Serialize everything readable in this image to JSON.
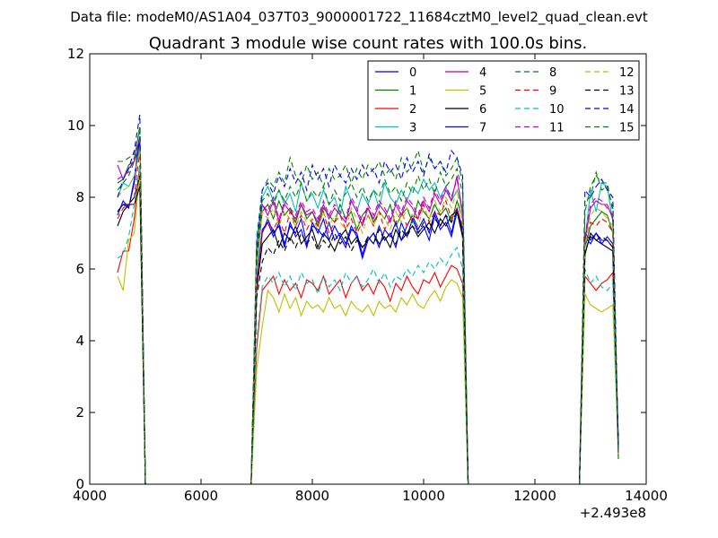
{
  "suptitle": "Data file: modeM0/AS1A04_037T03_9000001722_11684cztM0_level2_quad_clean.evt",
  "chart_data": {
    "type": "line",
    "title": "Quadrant 3 module wise count rates with 100.0s bins.",
    "xlabel": "",
    "ylabel": "",
    "x_offset_label": "+2.493e8",
    "xlim": [
      4000,
      14000
    ],
    "ylim": [
      0,
      12
    ],
    "xticks": [
      "4000",
      "6000",
      "8000",
      "10000",
      "12000",
      "14000"
    ],
    "yticks": [
      "0",
      "2",
      "4",
      "6",
      "8",
      "10",
      "12"
    ],
    "grid": false,
    "legend": {
      "placement": "top-right",
      "columns": 4
    },
    "x_segments": [
      {
        "start": 4500,
        "end": 4900,
        "step": 100
      },
      {
        "start": 5000,
        "end": 6900,
        "step": 100,
        "zero": true
      },
      {
        "start": 7000,
        "end": 10700,
        "step": 100
      },
      {
        "start": 10800,
        "end": 12800,
        "step": 100,
        "zero": true
      },
      {
        "start": 12900,
        "end": 13500,
        "step": 100
      }
    ],
    "series": [
      {
        "name": "0",
        "color": "#0000ff",
        "style": "solid",
        "seg1": [
          7.6,
          7.8,
          7.7,
          8.4,
          9.6
        ],
        "seg3": [
          5.5,
          7.0,
          7.4,
          7.0,
          7.2,
          6.6,
          7.3,
          6.9,
          7.1,
          6.6,
          7.3,
          7.0,
          7.4,
          6.8,
          7.2,
          6.9,
          6.6,
          7.1,
          7.0,
          6.4,
          6.9,
          6.7,
          7.2,
          6.8,
          7.0,
          6.6,
          7.3,
          6.9,
          7.4,
          7.0,
          7.2,
          6.8,
          7.5,
          7.1,
          7.3,
          6.9,
          7.6,
          7.0
        ],
        "seg5": [
          6.9,
          6.7,
          7.0,
          6.8,
          6.8,
          6.6,
          1.0
        ]
      },
      {
        "name": "1",
        "color": "#008000",
        "style": "solid",
        "seg1": [
          8.4,
          8.5,
          8.9,
          9.0,
          9.4
        ],
        "seg3": [
          6.0,
          7.6,
          7.8,
          7.4,
          7.9,
          7.5,
          7.7,
          7.3,
          7.8,
          7.4,
          7.6,
          7.2,
          7.7,
          7.5,
          7.3,
          7.8,
          7.4,
          7.6,
          7.1,
          7.5,
          7.7,
          7.3,
          7.6,
          7.4,
          7.8,
          7.2,
          7.5,
          7.7,
          7.3,
          7.9,
          7.6,
          7.4,
          7.8,
          7.5,
          7.7,
          7.3,
          7.9,
          7.4
        ],
        "seg5": [
          6.6,
          7.2,
          7.4,
          7.6,
          7.5,
          7.0,
          0.9
        ]
      },
      {
        "name": "2",
        "color": "#ff0000",
        "style": "solid",
        "seg1": [
          5.9,
          6.5,
          6.5,
          7.4,
          8.9
        ],
        "seg3": [
          3.8,
          5.4,
          5.6,
          5.8,
          5.3,
          5.7,
          5.4,
          5.6,
          5.2,
          5.7,
          5.6,
          5.4,
          5.8,
          5.3,
          5.5,
          5.7,
          5.2,
          5.6,
          5.8,
          5.4,
          5.6,
          5.3,
          5.7,
          5.5,
          5.1,
          5.6,
          5.4,
          5.8,
          5.5,
          5.3,
          5.7,
          5.6,
          5.9,
          5.5,
          5.8,
          6.1,
          6.0,
          5.6
        ],
        "seg5": [
          5.8,
          5.6,
          5.4,
          5.6,
          5.7,
          5.9,
          0.8
        ]
      },
      {
        "name": "3",
        "color": "#00bfbf",
        "style": "solid",
        "seg1": [
          8.0,
          8.4,
          8.3,
          8.6,
          9.4
        ],
        "seg3": [
          6.8,
          8.0,
          8.3,
          7.9,
          8.2,
          7.8,
          8.1,
          7.6,
          8.4,
          7.9,
          8.1,
          7.7,
          8.2,
          7.8,
          8.0,
          7.5,
          8.3,
          7.9,
          7.6,
          8.1,
          7.8,
          8.2,
          7.7,
          8.4,
          8.0,
          7.8,
          8.2,
          7.9,
          8.3,
          8.1,
          8.5,
          8.2,
          8.4,
          8.0,
          8.3,
          7.9,
          8.2,
          7.7
        ],
        "seg5": [
          6.8,
          8.2,
          7.6,
          8.4,
          8.3,
          7.3,
          0.7
        ]
      },
      {
        "name": "4",
        "color": "#bf00bf",
        "style": "solid",
        "seg1": [
          8.9,
          8.5,
          8.8,
          9.0,
          9.7
        ],
        "seg3": [
          6.5,
          7.8,
          7.5,
          7.9,
          7.3,
          7.8,
          7.6,
          7.4,
          7.8,
          7.5,
          7.6,
          7.3,
          7.8,
          7.4,
          7.7,
          7.5,
          7.3,
          7.9,
          7.6,
          7.2,
          7.7,
          7.4,
          7.8,
          7.6,
          7.3,
          7.8,
          7.5,
          7.9,
          7.7,
          7.4,
          7.9,
          7.6,
          8.1,
          7.8,
          8.2,
          7.9,
          8.6,
          7.5
        ],
        "seg5": [
          6.8,
          7.7,
          7.9,
          7.8,
          7.8,
          7.4,
          0.8
        ]
      },
      {
        "name": "5",
        "color": "#bfbf00",
        "style": "solid",
        "seg1": [
          5.8,
          5.4,
          6.8,
          7.0,
          8.7
        ],
        "seg3": [
          3.2,
          4.4,
          5.4,
          5.2,
          4.8,
          5.3,
          4.9,
          5.2,
          4.7,
          5.1,
          4.9,
          5.0,
          4.8,
          5.2,
          4.9,
          5.0,
          4.7,
          5.1,
          4.9,
          4.8,
          5.0,
          4.7,
          5.1,
          4.9,
          5.0,
          4.8,
          5.2,
          5.0,
          5.3,
          5.0,
          4.9,
          5.2,
          5.4,
          5.1,
          5.5,
          5.7,
          5.6,
          5.2
        ],
        "seg5": [
          5.3,
          5.0,
          4.9,
          4.8,
          4.9,
          5.0,
          0.9
        ]
      },
      {
        "name": "6",
        "color": "#000000",
        "style": "solid",
        "seg1": [
          7.2,
          7.6,
          7.8,
          7.8,
          8.3
        ],
        "seg3": [
          5.4,
          6.7,
          6.9,
          7.1,
          6.6,
          7.0,
          6.8,
          7.2,
          6.7,
          6.9,
          7.1,
          6.6,
          7.0,
          6.8,
          6.5,
          6.9,
          7.1,
          6.7,
          6.9,
          6.6,
          6.8,
          7.0,
          6.7,
          6.9,
          6.6,
          7.1,
          6.8,
          7.0,
          7.2,
          6.9,
          7.1,
          7.3,
          7.0,
          7.4,
          7.2,
          7.5,
          7.6,
          6.9
        ],
        "seg5": [
          6.4,
          7.0,
          6.8,
          6.7,
          6.6,
          6.5,
          1.1
        ]
      },
      {
        "name": "7",
        "color": "#0000ff",
        "style": "solid",
        "seg1": [
          7.5,
          7.9,
          7.7,
          8.5,
          9.7
        ],
        "seg3": [
          5.6,
          7.1,
          7.3,
          6.9,
          7.3,
          6.7,
          7.2,
          7.0,
          7.4,
          6.7,
          7.2,
          7.1,
          6.9,
          7.3,
          6.8,
          7.0,
          6.7,
          7.2,
          6.9,
          6.3,
          6.8,
          7.0,
          6.6,
          7.1,
          6.9,
          7.3,
          6.8,
          7.2,
          7.5,
          7.1,
          7.4,
          7.0,
          7.6,
          7.2,
          7.5,
          7.0,
          7.7,
          7.1
        ],
        "seg5": [
          7.0,
          6.8,
          7.0,
          6.7,
          6.9,
          6.7,
          1.2
        ]
      },
      {
        "name": "8",
        "color": "#008000",
        "style": "dashed",
        "seg1": [
          9.0,
          9.0,
          9.1,
          9.2,
          9.9
        ],
        "seg3": [
          6.9,
          8.2,
          8.5,
          8.3,
          8.7,
          8.4,
          9.1,
          8.6,
          8.4,
          8.9,
          8.5,
          8.7,
          8.3,
          8.8,
          8.5,
          8.6,
          8.9,
          8.4,
          8.8,
          8.5,
          8.9,
          8.7,
          9.0,
          8.6,
          8.8,
          8.5,
          9.1,
          8.7,
          8.9,
          9.3,
          8.7,
          9.1,
          8.8,
          9.0,
          8.6,
          8.8,
          9.1,
          8.4
        ],
        "seg5": [
          7.6,
          8.3,
          8.6,
          8.4,
          8.4,
          7.6,
          0.8
        ]
      },
      {
        "name": "9",
        "color": "#ff0000",
        "style": "dashed",
        "seg1": [
          7.4,
          7.7,
          7.8,
          8.0,
          9.3
        ],
        "seg3": [
          5.4,
          7.0,
          7.3,
          7.1,
          7.4,
          7.0,
          7.6,
          7.2,
          7.5,
          7.1,
          7.4,
          7.2,
          7.6,
          7.0,
          7.3,
          7.5,
          7.1,
          7.4,
          7.0,
          7.3,
          7.5,
          7.2,
          7.6,
          7.1,
          7.4,
          7.3,
          7.6,
          7.2,
          7.5,
          7.4,
          7.8,
          7.3,
          7.6,
          7.5,
          7.9,
          7.4,
          7.7,
          7.2
        ],
        "seg5": [
          6.8,
          7.3,
          7.2,
          7.4,
          7.3,
          7.0,
          0.9
        ]
      },
      {
        "name": "10",
        "color": "#00bfbf",
        "style": "dashed",
        "seg1": [
          6.3,
          6.4,
          6.9,
          7.8,
          8.9
        ],
        "seg3": [
          4.0,
          5.5,
          5.8,
          5.6,
          5.9,
          5.5,
          5.8,
          5.4,
          5.9,
          5.6,
          5.7,
          5.3,
          5.8,
          5.5,
          5.7,
          5.4,
          5.9,
          5.6,
          5.8,
          5.5,
          5.7,
          6.0,
          5.6,
          5.9,
          5.5,
          5.8,
          5.7,
          6.0,
          5.8,
          6.1,
          5.9,
          6.2,
          6.0,
          6.3,
          6.1,
          6.4,
          6.6,
          6.0
        ],
        "seg5": [
          6.0,
          5.6,
          5.8,
          5.5,
          5.4,
          5.6,
          0.8
        ]
      },
      {
        "name": "11",
        "color": "#bf00bf",
        "style": "dashed",
        "seg1": [
          8.5,
          8.6,
          8.7,
          9.1,
          9.6
        ],
        "seg3": [
          6.4,
          7.8,
          7.6,
          8.0,
          7.4,
          7.9,
          7.7,
          7.5,
          7.9,
          7.6,
          7.7,
          7.4,
          7.9,
          7.5,
          7.8,
          7.6,
          7.4,
          8.0,
          7.7,
          7.3,
          7.8,
          7.5,
          7.9,
          7.7,
          7.4,
          7.9,
          7.6,
          8.0,
          7.8,
          7.5,
          8.0,
          7.7,
          8.2,
          7.9,
          8.3,
          8.0,
          8.5,
          7.6
        ],
        "seg5": [
          6.9,
          7.8,
          8.0,
          7.9,
          7.7,
          7.5,
          0.8
        ]
      },
      {
        "name": "12",
        "color": "#bfbf00",
        "style": "dashed",
        "seg1": [
          8.0,
          8.2,
          8.3,
          8.6,
          9.3
        ],
        "seg3": [
          6.2,
          7.6,
          7.4,
          7.7,
          7.2,
          7.6,
          7.4,
          7.2,
          7.6,
          7.3,
          7.4,
          7.1,
          7.6,
          7.2,
          7.5,
          7.3,
          7.1,
          7.7,
          7.4,
          7.0,
          7.5,
          7.2,
          7.6,
          7.4,
          7.1,
          7.6,
          7.3,
          7.7,
          7.5,
          7.2,
          7.7,
          7.4,
          7.9,
          7.6,
          8.0,
          7.7,
          8.2,
          7.3
        ],
        "seg5": [
          6.6,
          7.5,
          7.7,
          7.6,
          7.4,
          7.2,
          0.8
        ]
      },
      {
        "name": "13",
        "color": "#000000",
        "style": "dashed",
        "seg1": [
          7.6,
          7.8,
          7.8,
          8.0,
          8.6
        ],
        "seg3": [
          5.2,
          6.2,
          6.6,
          6.4,
          6.8,
          6.5,
          6.9,
          6.6,
          7.0,
          6.7,
          6.9,
          6.5,
          6.8,
          6.6,
          7.0,
          6.7,
          6.9,
          6.5,
          6.8,
          6.6,
          6.9,
          6.7,
          7.1,
          6.8,
          7.0,
          6.7,
          7.1,
          6.9,
          7.2,
          7.0,
          7.3,
          7.1,
          7.4,
          7.2,
          7.5,
          7.3,
          7.6,
          7.0
        ],
        "seg5": [
          6.5,
          6.9,
          6.8,
          6.9,
          6.8,
          6.6,
          1.1
        ]
      },
      {
        "name": "14",
        "color": "#0000ff",
        "style": "dashed",
        "seg1": [
          8.0,
          8.5,
          8.8,
          9.3,
          10.3
        ],
        "seg3": [
          6.5,
          8.2,
          8.4,
          8.1,
          8.6,
          8.3,
          8.8,
          8.4,
          8.7,
          8.2,
          8.9,
          8.5,
          8.8,
          8.3,
          8.9,
          8.6,
          8.4,
          8.8,
          8.5,
          8.9,
          8.6,
          8.8,
          8.4,
          9.0,
          8.7,
          8.9,
          8.5,
          9.1,
          8.7,
          9.0,
          8.6,
          9.2,
          8.8,
          9.0,
          8.7,
          9.3,
          9.1,
          8.6
        ],
        "seg5": [
          8.2,
          8.0,
          8.3,
          8.5,
          8.2,
          8.0,
          0.9
        ]
      },
      {
        "name": "15",
        "color": "#008000",
        "style": "dashed",
        "seg1": [
          8.2,
          8.4,
          8.6,
          9.0,
          10.0
        ],
        "seg3": [
          6.3,
          7.9,
          8.1,
          7.8,
          8.2,
          7.9,
          8.3,
          8.0,
          8.4,
          7.9,
          8.2,
          8.0,
          8.3,
          7.8,
          8.2,
          7.9,
          8.1,
          8.4,
          8.0,
          8.3,
          7.9,
          8.2,
          8.0,
          8.5,
          8.1,
          8.3,
          7.9,
          8.4,
          8.1,
          8.6,
          8.2,
          8.5,
          8.1,
          8.7,
          8.3,
          8.5,
          8.8,
          8.1
        ],
        "seg5": [
          7.9,
          8.0,
          8.7,
          8.2,
          8.3,
          7.7,
          0.7
        ]
      }
    ]
  }
}
